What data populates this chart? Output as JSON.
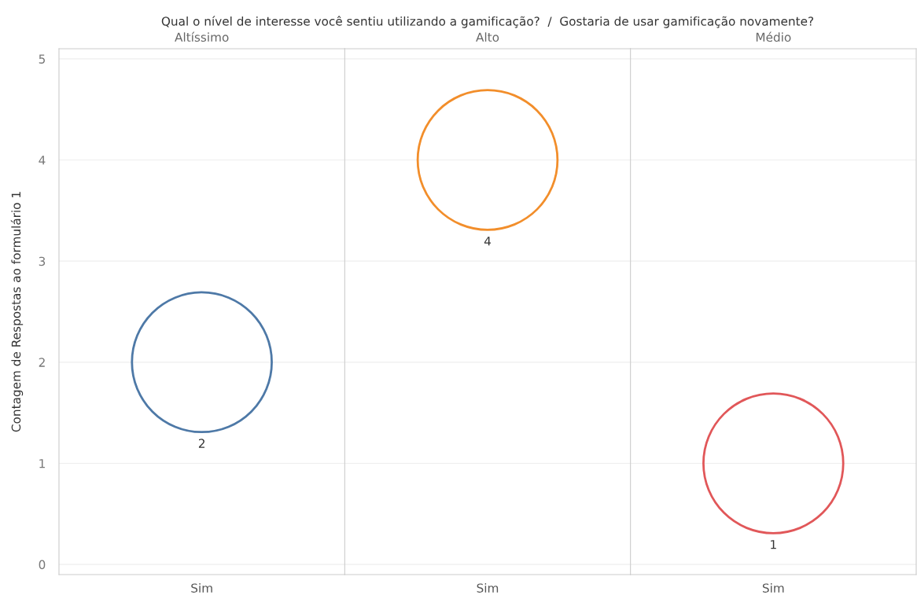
{
  "chart_data": [
    {
      "type": "scatter",
      "title": "Altíssimo",
      "annotations": [
        "Qual o nível de interesse você sentiu utilizando a gamificação?  /  Gostaria de usar gamificação novamente?"
      ],
      "ylabel": "Contagem de Respostas ao formulário 1",
      "categories": [
        "Sim"
      ],
      "values": [
        2
      ],
      "color": "#4e79a7",
      "marker": "circle",
      "data_labels": true,
      "ylim": [
        -0.1,
        5.1
      ],
      "yticks": [
        0,
        1,
        2,
        3,
        4,
        5
      ],
      "grid": "y"
    },
    {
      "type": "scatter",
      "title": "Alto",
      "categories": [
        "Sim"
      ],
      "values": [
        4
      ],
      "color": "#f28e2b",
      "marker": "circle",
      "data_labels": true,
      "ylim": [
        -0.1,
        5.1
      ],
      "yticks": [
        0,
        1,
        2,
        3,
        4,
        5
      ],
      "grid": "y",
      "tick_labels": "x"
    },
    {
      "type": "scatter",
      "title": "Médio",
      "categories": [
        "Sim"
      ],
      "values": [
        1
      ],
      "color": "#e15759",
      "marker": "circle",
      "data_labels": true,
      "ylim": [
        -0.1,
        5.1
      ],
      "yticks": [
        0,
        1,
        2,
        3,
        4,
        5
      ],
      "grid": "y",
      "tick_labels": "x"
    }
  ]
}
